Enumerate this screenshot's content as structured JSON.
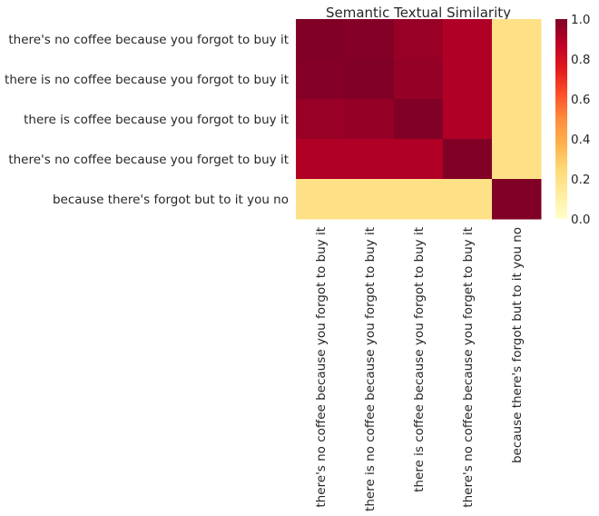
{
  "chart_data": {
    "type": "heatmap",
    "title": "Semantic Textual Similarity",
    "xlabel": "",
    "ylabel": "",
    "row_labels": [
      "there's no coffee because you forgot to buy it",
      "there is no coffee because you forgot to buy it",
      "there is coffee because you forgot to buy it",
      "there's no coffee because you forget to buy it",
      "because there's forgot but to it you no"
    ],
    "col_labels": [
      "there's no coffee because you forgot to buy it",
      "there is no coffee because you forgot to buy it",
      "there is coffee because you forgot to buy it",
      "there's no coffee because you forget to buy it",
      "because there's forgot but to it you no"
    ],
    "values": [
      [
        1.0,
        0.99,
        0.95,
        0.9,
        0.2
      ],
      [
        0.99,
        1.0,
        0.96,
        0.9,
        0.2
      ],
      [
        0.95,
        0.96,
        1.0,
        0.9,
        0.2
      ],
      [
        0.9,
        0.9,
        0.9,
        1.0,
        0.2
      ],
      [
        0.2,
        0.2,
        0.2,
        0.2,
        1.0
      ]
    ],
    "colorbar": {
      "range": [
        0,
        1
      ],
      "ticks": [
        "0.0",
        "0.2",
        "0.4",
        "0.6",
        "0.8",
        "1.0"
      ],
      "colormap": "YlOrRd"
    }
  }
}
